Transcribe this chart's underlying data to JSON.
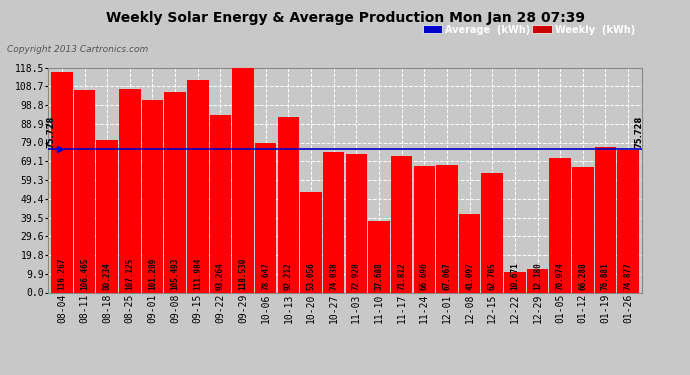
{
  "title": "Weekly Solar Energy & Average Production Mon Jan 28 07:39",
  "copyright": "Copyright 2013 Cartronics.com",
  "categories": [
    "08-04",
    "08-11",
    "08-18",
    "08-25",
    "09-01",
    "09-08",
    "09-15",
    "09-22",
    "09-29",
    "10-06",
    "10-13",
    "10-20",
    "10-27",
    "11-03",
    "11-10",
    "11-17",
    "11-24",
    "12-01",
    "12-08",
    "12-15",
    "12-22",
    "12-29",
    "01-05",
    "01-12",
    "01-19",
    "01-26"
  ],
  "values": [
    116.267,
    106.465,
    80.234,
    107.125,
    101.209,
    105.493,
    111.984,
    93.264,
    118.53,
    78.647,
    92.212,
    53.056,
    74.038,
    72.92,
    37.688,
    71.812,
    66.696,
    67.067,
    41.097,
    62.705,
    10.671,
    12.18,
    70.974,
    66.288,
    76.881,
    74.877
  ],
  "average": 75.728,
  "bar_color": "#ff0000",
  "average_color": "#0000cc",
  "yticks": [
    0.0,
    9.9,
    19.8,
    29.6,
    39.5,
    49.4,
    59.3,
    69.1,
    79.0,
    88.9,
    98.8,
    108.7,
    118.5
  ],
  "ylim": [
    0,
    118.5
  ],
  "background_color": "#c8c8c8",
  "plot_bg_color": "#c8c8c8",
  "grid_color": "#ffffff",
  "legend_avg_label": "Average  (kWh)",
  "legend_weekly_label": "Weekly  (kWh)",
  "legend_avg_bg": "#0000cc",
  "legend_weekly_bg": "#cc0000",
  "left_annotation": "75.728",
  "right_annotation": "75.728",
  "title_fontsize": 10,
  "bar_label_fontsize": 5.5,
  "tick_fontsize": 7,
  "copyright_fontsize": 6.5
}
